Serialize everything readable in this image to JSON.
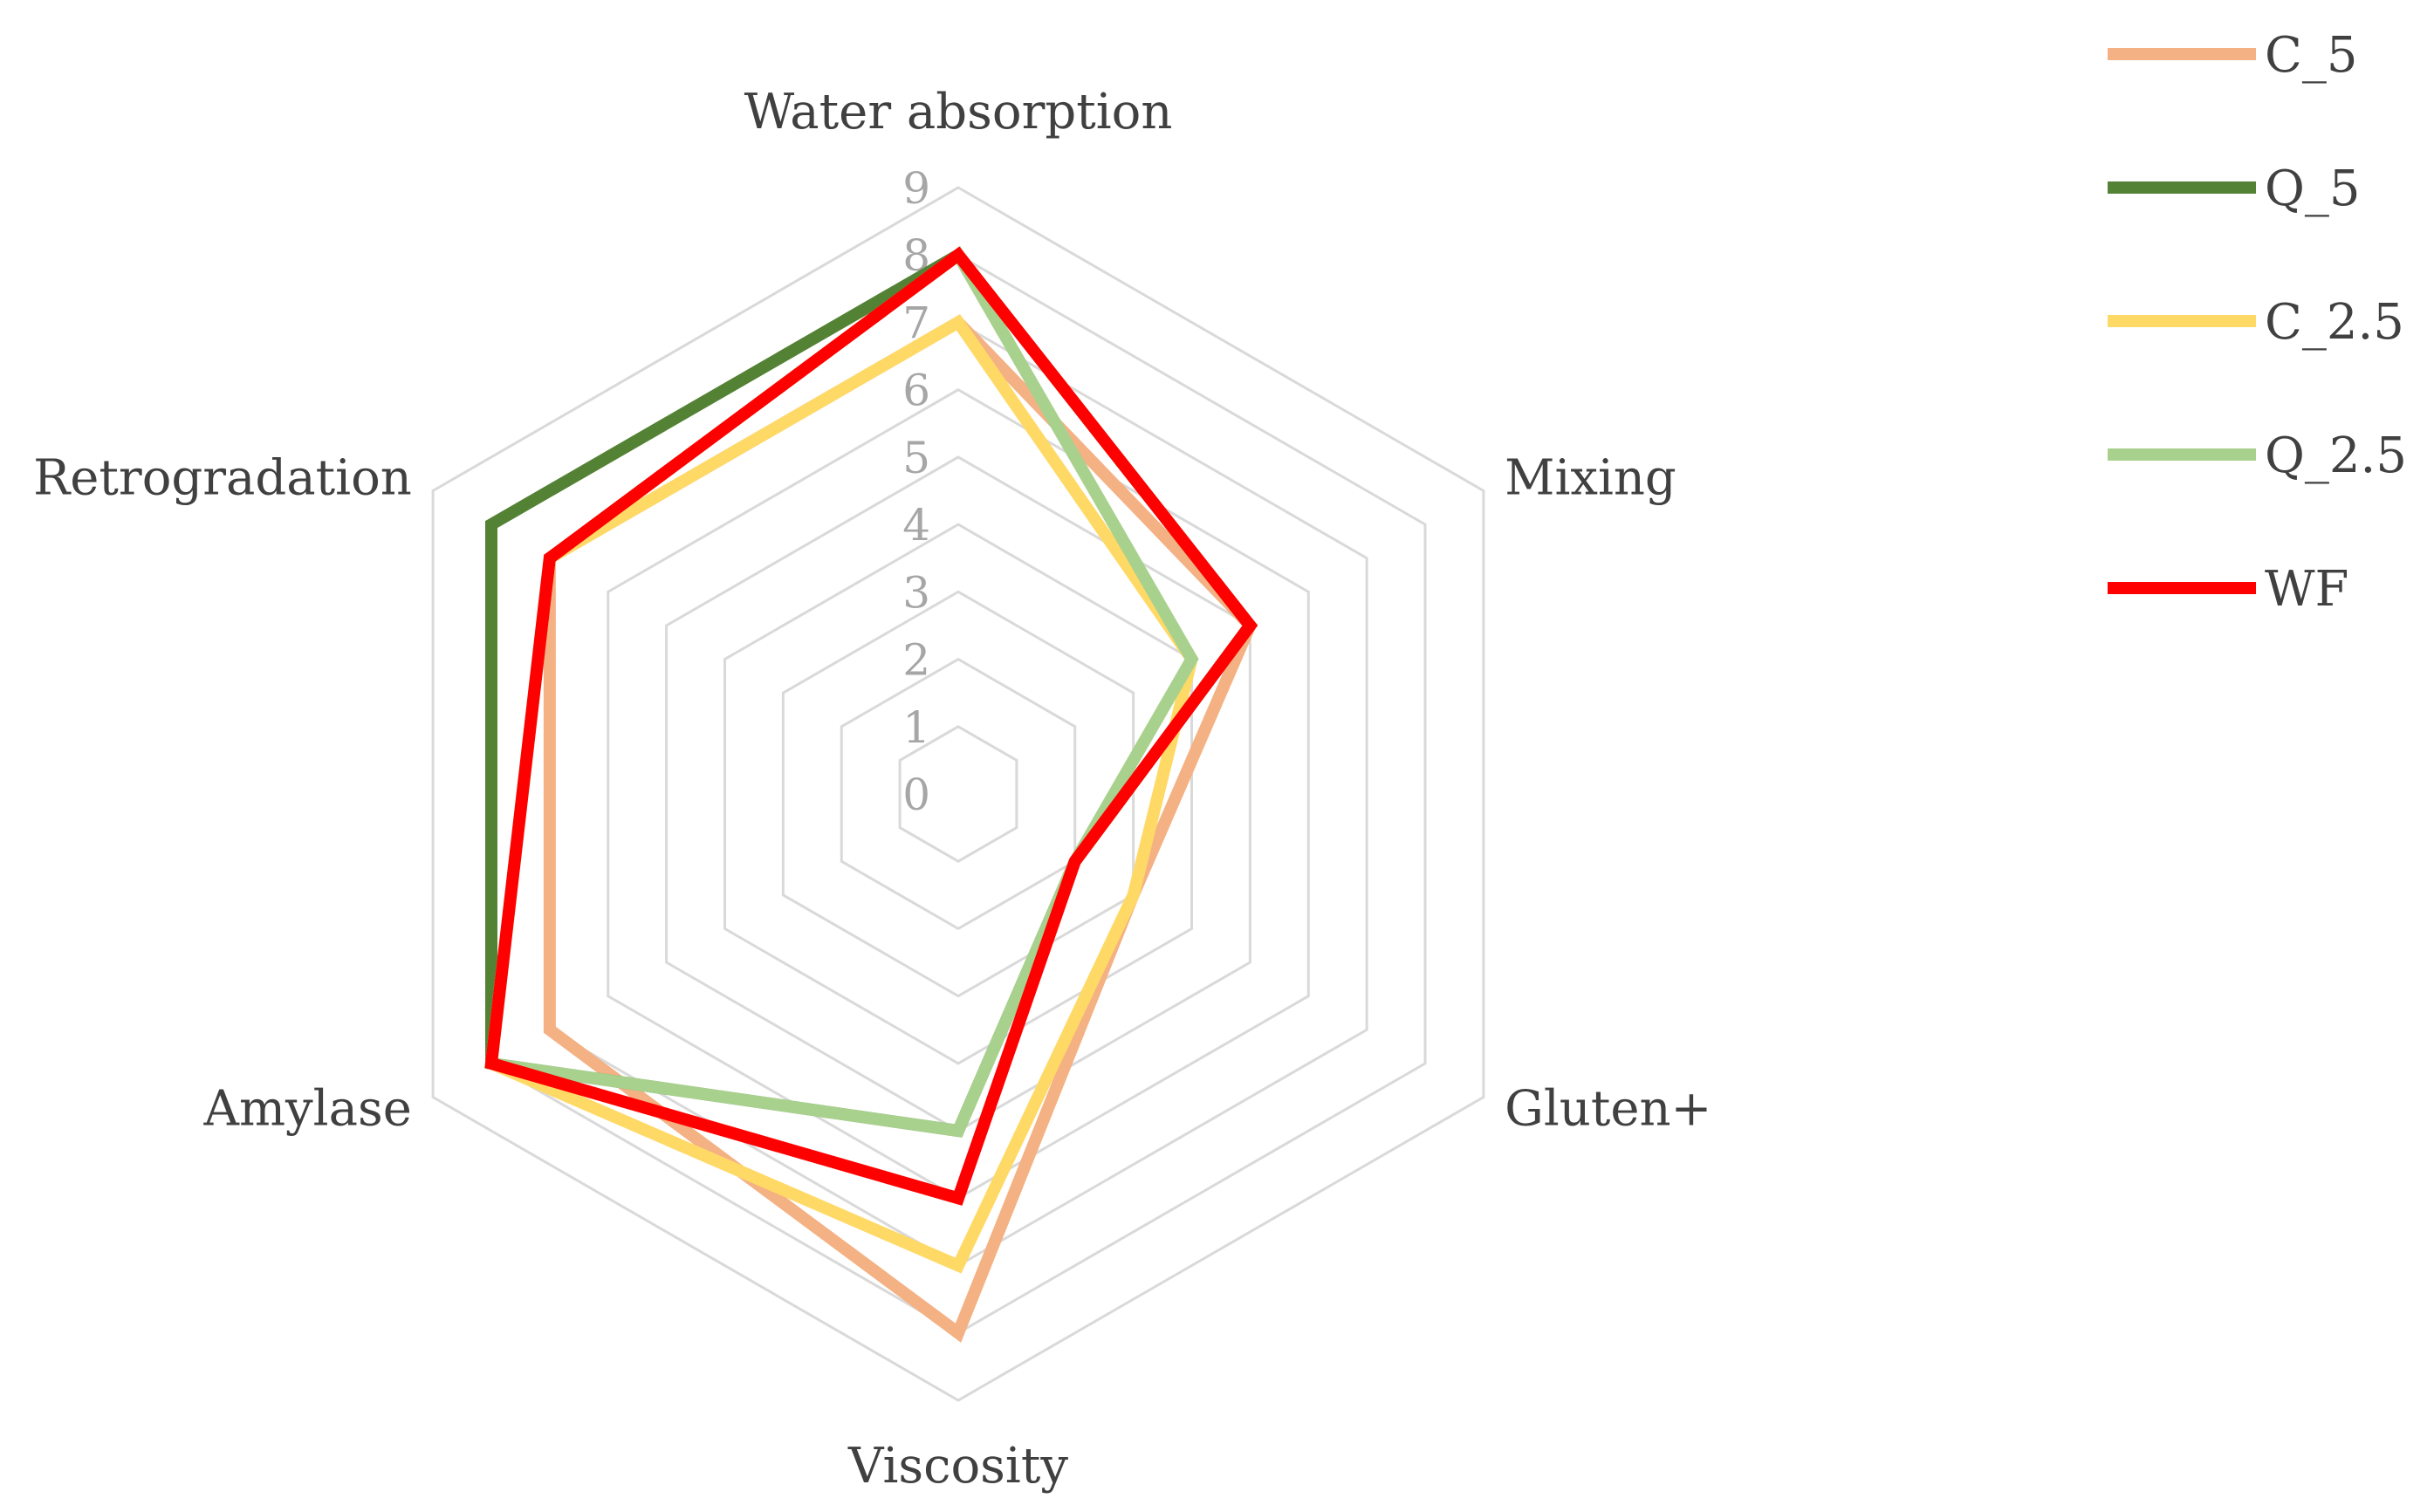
{
  "chart_data": {
    "type": "radar",
    "axes": [
      "Water absorption",
      "Mixing",
      "Gluten+",
      "Viscosity",
      "Amylase",
      "Retrogradation"
    ],
    "rlim": [
      0,
      9
    ],
    "ticks": [
      "0",
      "1",
      "2",
      "3",
      "4",
      "5",
      "6",
      "7",
      "8",
      "9"
    ],
    "grid": true,
    "legend_position": "right",
    "series": [
      {
        "name": "C_5",
        "color": "#f4b183",
        "values": [
          7,
          5,
          3,
          8,
          7,
          7
        ]
      },
      {
        "name": "Q_5",
        "color": "#548235",
        "values": [
          8,
          5,
          2,
          5,
          8,
          8
        ]
      },
      {
        "name": "C_2.5",
        "color": "#ffd966",
        "values": [
          7,
          4,
          3,
          7,
          8,
          7
        ]
      },
      {
        "name": "Q_2.5",
        "color": "#a9d18e",
        "values": [
          8,
          4,
          2,
          5,
          8,
          7
        ]
      },
      {
        "name": "WF",
        "color": "#ff0000",
        "values": [
          8,
          5,
          2,
          6,
          8,
          7
        ]
      }
    ]
  }
}
